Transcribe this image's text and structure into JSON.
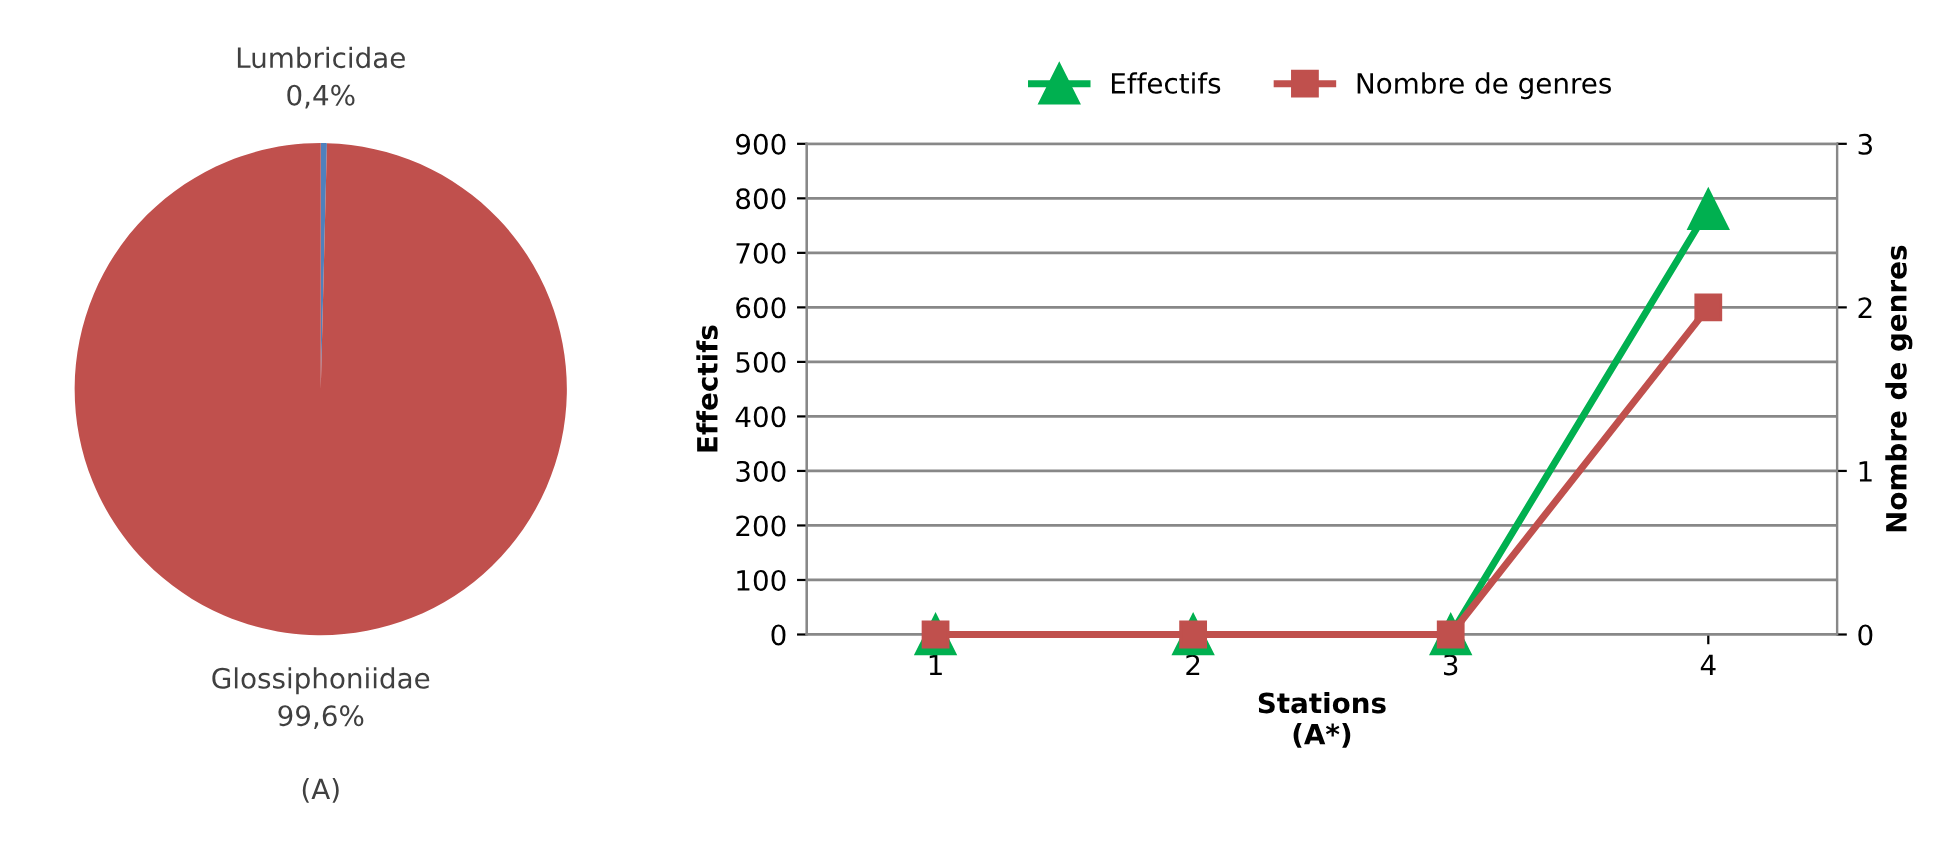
{
  "chart_data": [
    {
      "type": "pie",
      "categories": [
        "Lumbricidae",
        "Glossiphoniidae"
      ],
      "values": [
        0.4,
        99.6
      ],
      "colors": [
        "#4f81bd",
        "#c0504d"
      ],
      "value_labels": [
        "0,4%",
        "99,6%"
      ],
      "annotations": [
        "(A)"
      ]
    },
    {
      "type": "line",
      "categories": [
        "1",
        "2",
        "3",
        "4"
      ],
      "xlabel": "Stations\n(A*)",
      "ylabel": "Effectifs",
      "y2label": "Nombre de genres",
      "series": [
        {
          "name": "Effectifs",
          "color": "#00b050",
          "marker": "triangle",
          "values": [
            0,
            0,
            0,
            780
          ]
        },
        {
          "name": "Nombre de genres",
          "color": "#c0504d",
          "marker": "square",
          "axis": "y2",
          "values": [
            0,
            0,
            0,
            2
          ]
        }
      ],
      "ylim": [
        0,
        900
      ],
      "yticks": [
        0,
        100,
        200,
        300,
        400,
        500,
        600,
        700,
        800,
        900
      ],
      "y2lim": [
        0,
        3
      ],
      "y2ticks": [
        0,
        1,
        2,
        3
      ],
      "grid": "y",
      "legend": "top"
    }
  ]
}
